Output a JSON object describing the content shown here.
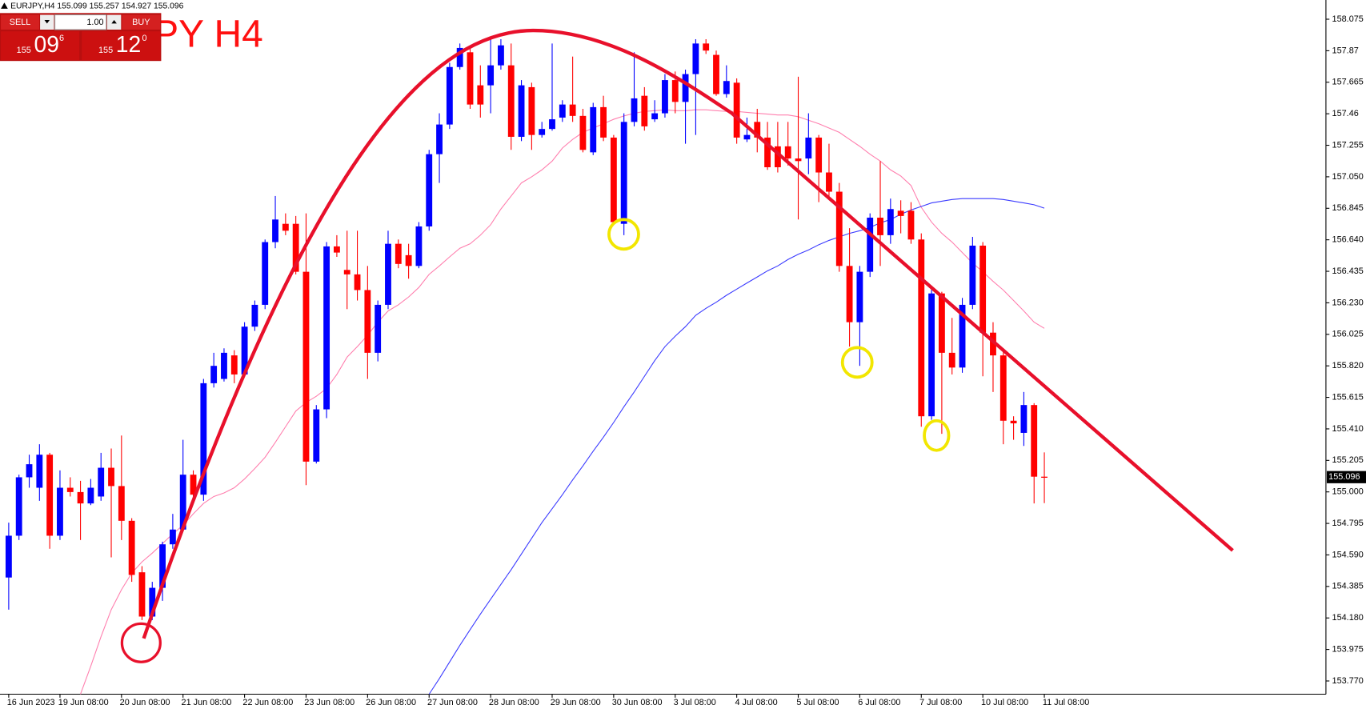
{
  "header": "EURJPY,H4 155.099 155.257 154.927 155.096",
  "trade_panel": {
    "sell": "SELL",
    "buy": "BUY",
    "lots": "1.00",
    "bid": {
      "big": "155",
      "pips": "09",
      "point": "6"
    },
    "ask": {
      "big": "155",
      "pips": "12",
      "point": "0"
    }
  },
  "chart_data": {
    "type": "candlestick",
    "title": "EURJPY H4",
    "up_color": "#0000ff",
    "down_color": "#ff0000",
    "ylim": [
      153.684,
      158.2
    ],
    "yticks": [
      158.075,
      157.87,
      157.665,
      157.46,
      157.255,
      {
        "value": 157.05,
        "label": "157.050"
      },
      156.845,
      {
        "value": 156.64,
        "label": "156.640"
      },
      156.435,
      {
        "value": 156.23,
        "label": "156.230"
      },
      156.025,
      {
        "value": 155.82,
        "label": "155.820"
      },
      155.615,
      {
        "value": 155.41,
        "label": "155.410"
      },
      155.205,
      {
        "value": 155,
        "label": "155.000"
      },
      154.795,
      {
        "value": 154.59,
        "label": "154.590"
      },
      154.385,
      {
        "value": 154.18,
        "label": "154.180"
      },
      153.975,
      {
        "value": 153.77,
        "label": "153.770"
      }
    ],
    "last_price": 155.096,
    "categories": [
      "16 Jun 2023",
      null,
      null,
      null,
      null,
      "19 Jun 08:00",
      null,
      null,
      null,
      null,
      null,
      "20 Jun 08:00",
      null,
      null,
      null,
      null,
      null,
      "21 Jun 08:00",
      null,
      null,
      null,
      null,
      null,
      "22 Jun 08:00",
      null,
      null,
      null,
      null,
      null,
      "23 Jun 08:00",
      null,
      null,
      null,
      null,
      null,
      "26 Jun 08:00",
      null,
      null,
      null,
      null,
      null,
      "27 Jun 08:00",
      null,
      null,
      null,
      null,
      null,
      "28 Jun 08:00",
      null,
      null,
      null,
      null,
      null,
      "29 Jun 08:00",
      null,
      null,
      null,
      null,
      null,
      "30 Jun 08:00",
      null,
      null,
      null,
      null,
      null,
      "3 Jul 08:00",
      null,
      null,
      null,
      null,
      null,
      "4 Jul 08:00",
      null,
      null,
      null,
      null,
      null,
      "5 Jul 08:00",
      null,
      null,
      null,
      null,
      null,
      "6 Jul 08:00",
      null,
      null,
      null,
      null,
      null,
      "7 Jul 08:00",
      null,
      null,
      null,
      null,
      null,
      "10 Jul 08:00",
      null,
      null,
      null,
      null,
      null,
      "11 Jul 08:00"
    ],
    "open": [
      154.443,
      154.715,
      155.095,
      155.027,
      155.242,
      154.715,
      155.027,
      154.999,
      154.925,
      154.97,
      155.157,
      155.038,
      154.812,
      154.477,
      154.189,
      154.376,
      154.659,
      154.755,
      155.112,
      154.982,
      155.707,
      155.735,
      155.888,
      155.764,
      156.075,
      156.217,
      156.625,
      156.744,
      156.744,
      156.432,
      155.197,
      155.537,
      156.597,
      156.444,
      156.415,
      156.313,
      155.905,
      156.217,
      156.614,
      156.54,
      156.47,
      156.727,
      157.197,
      157.39,
      157.764,
      157.86,
      157.645,
      157.645,
      157.775,
      157.775,
      157.31,
      157.633,
      157.322,
      157.361,
      157.435,
      157.52,
      157.446,
      157.209,
      157.503,
      157.305,
      156.744,
      157.407,
      157.577,
      157.424,
      157.463,
      157.679,
      157.537,
      157.718,
      157.917,
      157.843,
      157.588,
      157.662,
      157.293,
      157.407,
      157.305,
      157.248,
      157.248,
      157.169,
      157.169,
      157.305,
      157.078,
      156.953,
      156.47,
      156.104,
      156.432,
      156.784,
      156.67,
      156.829,
      156.829,
      156.642,
      155.492,
      156.291,
      155.905,
      155.809,
      156.217,
      156.602,
      156.036,
      155.888,
      155.463,
      155.384,
      155.565,
      155.099
    ],
    "high": [
      154.8,
      155.112,
      155.242,
      155.31,
      155.254,
      155.14,
      155.095,
      155.072,
      155.084,
      155.254,
      155.282,
      155.367,
      154.829,
      154.517,
      154.415,
      154.676,
      154.857,
      155.339,
      155.14,
      155.735,
      155.905,
      155.934,
      155.922,
      156.104,
      156.245,
      156.642,
      156.925,
      156.812,
      156.795,
      156.812,
      155.565,
      156.625,
      156.67,
      156.699,
      156.699,
      156.47,
      156.245,
      156.699,
      156.642,
      156.614,
      156.755,
      157.225,
      157.463,
      157.792,
      157.917,
      157.888,
      157.775,
      157.945,
      157.945,
      157.917,
      157.679,
      157.662,
      157.407,
      157.917,
      157.548,
      157.832,
      157.492,
      157.531,
      157.577,
      157.322,
      157.463,
      157.86,
      157.633,
      157.548,
      157.718,
      157.735,
      157.747,
      157.945,
      157.945,
      157.871,
      157.775,
      157.69,
      157.435,
      157.492,
      157.407,
      157.407,
      157.407,
      157.701,
      157.463,
      157.322,
      157.265,
      157.01,
      156.716,
      156.47,
      156.812,
      157.152,
      156.908,
      156.897,
      156.885,
      156.682,
      156.33,
      156.302,
      156.132,
      156.262,
      156.659,
      156.625,
      156.104,
      155.934,
      155.492,
      155.65,
      155.577,
      155.257
    ],
    "low": [
      154.234,
      154.687,
      155.027,
      154.942,
      154.63,
      154.687,
      154.97,
      154.687,
      154.914,
      154.942,
      154.574,
      154.687,
      154.415,
      154.166,
      154.166,
      154.291,
      154.63,
      154.744,
      154.959,
      154.942,
      155.679,
      155.718,
      155.707,
      155.752,
      156.047,
      156.189,
      156.585,
      156.67,
      156.415,
      155.044,
      155.185,
      155.48,
      156.529,
      156.189,
      156.245,
      155.735,
      155.849,
      156.189,
      156.455,
      156.387,
      156.455,
      156.699,
      157.01,
      157.361,
      157.747,
      157.492,
      157.435,
      157.463,
      157.747,
      157.225,
      157.282,
      157.225,
      157.305,
      157.35,
      157.407,
      157.407,
      157.209,
      157.191,
      157.282,
      156.738,
      156.67,
      157.378,
      157.35,
      157.407,
      157.435,
      157.463,
      157.265,
      157.322,
      157.849,
      157.577,
      157.565,
      157.265,
      157.276,
      157.209,
      157.095,
      157.078,
      157.123,
      156.772,
      157.067,
      156.885,
      156.908,
      156.432,
      155.945,
      155.82,
      156.398,
      156.47,
      156.614,
      156.682,
      156.614,
      155.424,
      155.469,
      155.378,
      155.764,
      155.775,
      156.189,
      155.752,
      155.65,
      155.31,
      155.339,
      155.299,
      154.925,
      154.927
    ],
    "close": [
      154.715,
      155.095,
      155.18,
      155.242,
      154.715,
      155.027,
      154.999,
      154.925,
      155.027,
      155.157,
      155.038,
      154.812,
      154.46,
      154.189,
      154.376,
      154.659,
      154.755,
      155.112,
      154.982,
      155.707,
      155.82,
      155.905,
      155.764,
      156.075,
      156.217,
      156.625,
      156.772,
      156.699,
      156.432,
      155.197,
      155.537,
      156.597,
      156.557,
      156.415,
      156.313,
      155.905,
      156.217,
      156.614,
      156.483,
      156.47,
      156.727,
      157.197,
      157.39,
      157.764,
      157.888,
      157.52,
      157.52,
      157.775,
      157.905,
      157.31,
      157.645,
      157.322,
      157.361,
      157.424,
      157.52,
      157.446,
      157.225,
      157.503,
      157.305,
      156.755,
      157.407,
      157.56,
      157.378,
      157.463,
      157.679,
      157.537,
      157.718,
      157.917,
      157.871,
      157.588,
      157.673,
      157.305,
      157.322,
      157.305,
      157.112,
      157.112,
      157.169,
      157.152,
      157.305,
      157.078,
      156.953,
      156.47,
      156.104,
      156.432,
      156.784,
      156.67,
      156.84,
      156.795,
      156.642,
      155.492,
      156.291,
      155.905,
      155.809,
      156.217,
      156.602,
      156.036,
      155.888,
      155.463,
      155.446,
      155.565,
      155.099,
      155.096
    ],
    "overlays": [
      {
        "color": "#ff7fae",
        "values": [
          null,
          null,
          null,
          null,
          null,
          null,
          null,
          153.684,
          153.866,
          154.058,
          154.234,
          154.364,
          154.472,
          154.545,
          154.602,
          154.664,
          154.727,
          154.783,
          154.857,
          154.925,
          154.97,
          154.993,
          155.027,
          155.084,
          155.152,
          155.225,
          155.322,
          155.424,
          155.526,
          155.582,
          155.622,
          155.673,
          155.764,
          155.877,
          155.945,
          156.019,
          156.104,
          156.177,
          156.217,
          156.268,
          156.33,
          156.415,
          156.47,
          156.529,
          156.585,
          156.614,
          156.67,
          156.738,
          156.84,
          156.925,
          157.01,
          157.05,
          157.095,
          157.152,
          157.237,
          157.293,
          157.339,
          157.367,
          157.395,
          157.424,
          157.446,
          157.463,
          157.475,
          157.48,
          157.486,
          157.48,
          157.48,
          157.486,
          157.486,
          157.48,
          157.475,
          157.475,
          157.469,
          157.463,
          157.458,
          157.452,
          157.452,
          157.441,
          157.418,
          157.395,
          157.367,
          157.339,
          157.293,
          157.248,
          157.197,
          157.152,
          157.095,
          157.055,
          156.993,
          156.851,
          156.755,
          156.682,
          156.625,
          156.557,
          156.489,
          156.432,
          156.37,
          156.313,
          156.245,
          156.177,
          156.104,
          156.064
        ]
      },
      {
        "color": "#3a3aff",
        "values": [
          null,
          null,
          null,
          null,
          null,
          null,
          null,
          null,
          null,
          null,
          null,
          null,
          null,
          null,
          null,
          null,
          null,
          null,
          null,
          null,
          null,
          null,
          null,
          null,
          null,
          null,
          null,
          null,
          null,
          null,
          null,
          null,
          null,
          null,
          null,
          null,
          null,
          null,
          null,
          null,
          null,
          153.684,
          153.786,
          153.894,
          154.002,
          154.104,
          154.205,
          154.302,
          154.398,
          154.494,
          154.596,
          154.698,
          154.8,
          154.891,
          154.982,
          155.078,
          155.169,
          155.265,
          155.356,
          155.452,
          155.554,
          155.65,
          155.752,
          155.854,
          155.945,
          156.013,
          156.075,
          156.149,
          156.194,
          156.234,
          156.279,
          156.319,
          156.359,
          156.398,
          156.438,
          156.47,
          156.512,
          156.546,
          156.574,
          156.608,
          156.636,
          156.659,
          156.682,
          156.699,
          156.721,
          156.75,
          156.772,
          156.806,
          156.834,
          156.857,
          156.88,
          156.891,
          156.902,
          156.908,
          156.908,
          156.908,
          156.908,
          156.902,
          156.891,
          156.88,
          156.868,
          156.846
        ]
      }
    ]
  }
}
